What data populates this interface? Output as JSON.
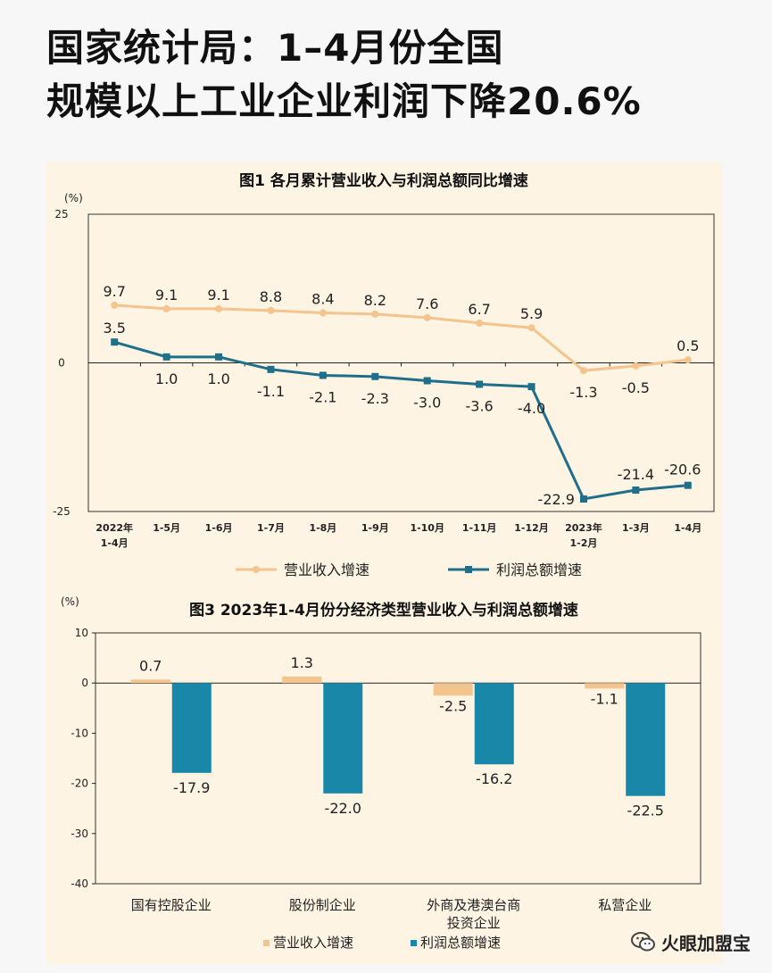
{
  "headline": {
    "line1": "国家统计局：1–4月份全国",
    "line2": "规模以上工业企业利润下降20.6%"
  },
  "watermark": {
    "text": "火眼加盟宝",
    "icon": "wechat-icon"
  },
  "chart_data": [
    {
      "type": "line",
      "title": "图1  各月累计营业收入与利润总额同比增速",
      "ylabel": "(%)",
      "ylim": [
        -25,
        25
      ],
      "yticks": [
        "25",
        "0",
        "-25"
      ],
      "categories": [
        [
          "2022年",
          "1-4月"
        ],
        [
          "1-5月"
        ],
        [
          "1-6月"
        ],
        [
          "1-7月"
        ],
        [
          "1-8月"
        ],
        [
          "1-9月"
        ],
        [
          "1-10月"
        ],
        [
          "1-11月"
        ],
        [
          "1-12月"
        ],
        [
          "2023年",
          "1-2月"
        ],
        [
          "1-3月"
        ],
        [
          "1-4月"
        ]
      ],
      "series": [
        {
          "name": "营业收入增速",
          "color": "#f4c48e",
          "values": [
            9.7,
            9.1,
            9.1,
            8.8,
            8.4,
            8.2,
            7.6,
            6.7,
            5.9,
            -1.3,
            -0.5,
            0.5
          ],
          "labels": [
            "9.7",
            "9.1",
            "9.1",
            "8.8",
            "8.4",
            "8.2",
            "7.6",
            "6.7",
            "5.9",
            "-1.3",
            "-0.5",
            "0.5"
          ]
        },
        {
          "name": "利润总额增速",
          "color": "#1f6f8b",
          "values": [
            3.5,
            1.0,
            1.0,
            -1.1,
            -2.1,
            -2.3,
            -3.0,
            -3.6,
            -4.0,
            -22.9,
            -21.4,
            -20.6
          ],
          "labels": [
            "3.5",
            "1.0",
            "1.0",
            "-1.1",
            "-2.1",
            "-2.3",
            "-3.0",
            "-3.6",
            "-4.0",
            "-22.9",
            "-21.4",
            "-20.6"
          ]
        }
      ],
      "legend": [
        "营业收入增速",
        "利润总额增速"
      ]
    },
    {
      "type": "bar",
      "title": "图3  2023年1-4月份分经济类型营业收入与利润总额增速",
      "ylabel": "(%)",
      "ylim": [
        -40,
        10
      ],
      "yticks": [
        "10",
        "0",
        "-10",
        "-20",
        "-30",
        "-40"
      ],
      "categories": [
        [
          "国有控股企业"
        ],
        [
          "股份制企业"
        ],
        [
          "外商及港澳台商",
          "投资企业"
        ],
        [
          "私营企业"
        ]
      ],
      "series": [
        {
          "name": "营业收入增速",
          "color": "#f4c48e",
          "values": [
            0.7,
            1.3,
            -2.5,
            -1.1
          ],
          "labels": [
            "0.7",
            "1.3",
            "-2.5",
            "-1.1"
          ]
        },
        {
          "name": "利润总额增速",
          "color": "#1987a8",
          "values": [
            -17.9,
            -22.0,
            -16.2,
            -22.5
          ],
          "labels": [
            "-17.9",
            "-22.0",
            "-16.2",
            "-22.5"
          ]
        }
      ],
      "legend": [
        "营业收入增速",
        "利润总额增速"
      ]
    }
  ]
}
